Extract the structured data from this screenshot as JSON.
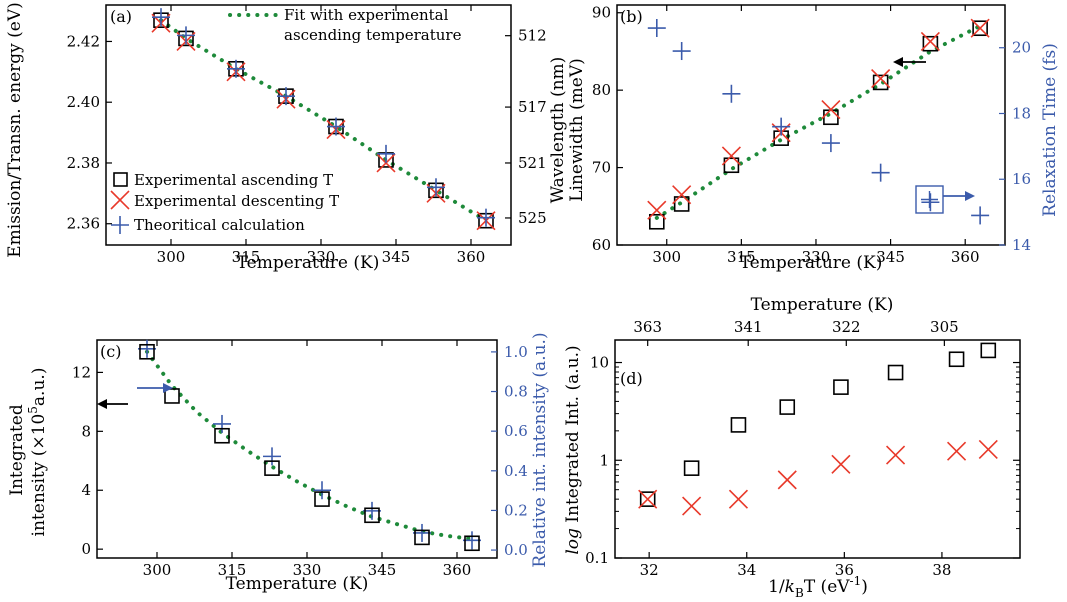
{
  "colors": {
    "black_marker": "#000000",
    "red_marker": "#e8392a",
    "blue_marker": "#3b5bab",
    "green_fit": "#1e8a3a"
  },
  "chart_data": [
    {
      "id": "a",
      "type": "scatter",
      "panel_label": "(a)",
      "xlabel": "Temperature (K)",
      "ylabel": "Emission/Transn. energy (eV)",
      "y2label": "Wavelength (nm)",
      "xlim": [
        287,
        368
      ],
      "ylim": [
        2.353,
        2.432
      ],
      "xticks": [
        300,
        315,
        330,
        345,
        360
      ],
      "yticks": [
        2.36,
        2.38,
        2.4,
        2.42
      ],
      "ytick_labels": [
        "2.36",
        "2.38",
        "2.40",
        "2.42"
      ],
      "y2ticks": [
        {
          "label": "512",
          "y": 2.4219
        },
        {
          "label": "517",
          "y": 2.3984
        },
        {
          "label": "521",
          "y": 2.38
        },
        {
          "label": "525",
          "y": 2.3619
        }
      ],
      "legend": {
        "ascending": "Experimental ascending T",
        "descending": "Experimental descenting T",
        "theory": "Theoritical calculation",
        "fit_line1": "Fit with experimental",
        "fit_line2": "ascending temperature"
      },
      "series": [
        {
          "name": "Experimental ascending T",
          "marker": "square",
          "color": "black_marker",
          "x": [
            298,
            303,
            313,
            323,
            333,
            343,
            353,
            363
          ],
          "y": [
            2.427,
            2.421,
            2.411,
            2.402,
            2.392,
            2.381,
            2.371,
            2.361
          ]
        },
        {
          "name": "Experimental descenting T",
          "marker": "x",
          "color": "red_marker",
          "x": [
            298,
            303,
            313,
            323,
            333,
            343,
            353,
            363
          ],
          "y": [
            2.426,
            2.42,
            2.41,
            2.401,
            2.391,
            2.38,
            2.37,
            2.361
          ]
        },
        {
          "name": "Theoritical calculation",
          "marker": "plus",
          "color": "blue_marker",
          "x": [
            298,
            303,
            313,
            323,
            333,
            343,
            353,
            363
          ],
          "y": [
            2.428,
            2.422,
            2.411,
            2.402,
            2.392,
            2.383,
            2.372,
            2.362
          ]
        },
        {
          "name": "Fit with experimental ascending temperature",
          "marker": "dotted",
          "color": "green_fit",
          "x": [
            298,
            303,
            313,
            323,
            333,
            343,
            353,
            363
          ],
          "y": [
            2.427,
            2.421,
            2.411,
            2.402,
            2.392,
            2.381,
            2.371,
            2.361
          ]
        }
      ]
    },
    {
      "id": "b",
      "type": "scatter",
      "panel_label": "(b)",
      "xlabel": "Temperature (K)",
      "ylabel": "Linewidth (meV)",
      "y2label": "Relaxation Time (fs)",
      "xlim": [
        290,
        368
      ],
      "ylim": [
        60,
        91
      ],
      "y2lim": [
        14,
        21.3
      ],
      "xticks": [
        300,
        315,
        330,
        345,
        360
      ],
      "yticks": [
        60,
        70,
        80,
        90
      ],
      "y2ticks": [
        14,
        16,
        18,
        20
      ],
      "series": [
        {
          "name": "Experimental ascending T",
          "marker": "square",
          "color": "black_marker",
          "x": [
            298,
            303,
            313,
            323,
            333,
            343,
            353,
            363
          ],
          "y": [
            63.0,
            65.3,
            70.3,
            73.8,
            76.5,
            81.0,
            86.0,
            88.0
          ]
        },
        {
          "name": "Experimental descenting T",
          "marker": "x",
          "color": "red_marker",
          "x": [
            298,
            303,
            313,
            323,
            333,
            343,
            353,
            363
          ],
          "y": [
            64.5,
            66.5,
            71.5,
            74.5,
            77.5,
            81.5,
            86.3,
            88.0
          ]
        },
        {
          "name": "Fit with experimental ascending temperature",
          "marker": "dotted",
          "color": "green_fit",
          "x": [
            298,
            303,
            313,
            323,
            333,
            343,
            353,
            363
          ],
          "y": [
            63.5,
            65.5,
            69.8,
            73.6,
            77.0,
            80.8,
            85.0,
            88.3
          ]
        },
        {
          "name": "Relaxation Time",
          "marker": "plus",
          "color": "blue_marker",
          "axis": "right",
          "x": [
            298,
            303,
            313,
            323,
            333,
            343,
            353,
            363
          ],
          "y": [
            20.6,
            19.9,
            18.6,
            17.6,
            17.1,
            16.2,
            15.3,
            14.9
          ]
        }
      ]
    },
    {
      "id": "c",
      "type": "scatter",
      "panel_label": "(c)",
      "xlabel": "Temperature (K)",
      "ylabel_line1": "Integrated",
      "ylabel_line2": "intensity (×10",
      "ylabel_exp": "5",
      "ylabel_line2_end": "a.u.)",
      "y2label": "Relative int. intensity (a.u.)",
      "xlim": [
        288,
        368
      ],
      "ylim": [
        -0.6,
        14.2
      ],
      "y2lim": [
        -0.04,
        1.06
      ],
      "xticks": [
        300,
        315,
        330,
        345,
        360
      ],
      "yticks": [
        0,
        4,
        8,
        12
      ],
      "y2ticks": [
        0.0,
        0.2,
        0.4,
        0.6,
        0.8,
        1.0
      ],
      "y2tick_labels": [
        "0.0",
        "0.2",
        "0.4",
        "0.6",
        "0.8",
        "1.0"
      ],
      "series": [
        {
          "name": "Experimental ascending T",
          "marker": "square",
          "color": "black_marker",
          "x": [
            298,
            303,
            313,
            323,
            333,
            343,
            353,
            363
          ],
          "y": [
            13.4,
            10.4,
            7.7,
            5.5,
            3.4,
            2.3,
            0.8,
            0.4
          ]
        },
        {
          "name": "Relative int. intensity",
          "marker": "plus",
          "color": "blue_marker",
          "x": [
            298,
            313,
            323,
            333,
            343,
            353,
            363
          ],
          "y": [
            13.6,
            8.5,
            6.3,
            4.0,
            2.6,
            1.1,
            0.6
          ]
        },
        {
          "name": "Fit with experimental ascending temperature",
          "marker": "dotted",
          "color": "green_fit",
          "x": [
            298,
            303,
            308,
            313,
            318,
            323,
            328,
            333,
            338,
            343,
            348,
            353,
            358,
            363
          ],
          "y": [
            13.4,
            11.1,
            9.3,
            7.9,
            6.7,
            5.6,
            4.6,
            3.7,
            2.9,
            2.2,
            1.7,
            1.2,
            0.9,
            0.7
          ]
        }
      ]
    },
    {
      "id": "d",
      "type": "scatter",
      "panel_label": "(d)",
      "xlabel_prefix": "1/",
      "xlabel_k": "k",
      "xlabel_sub": "B",
      "xlabel_mid": "T (eV",
      "xlabel_sup": "-1",
      "xlabel_end": ")",
      "ylabel_log": "log",
      "ylabel_rest": " Integrated Int. (a.u.)",
      "top_xlabel": "Temperature (K)",
      "xlim": [
        31.3,
        39.6
      ],
      "ylim": [
        0.1,
        17
      ],
      "yscale": "log",
      "xticks": [
        32,
        34,
        36,
        38
      ],
      "yticks": [
        0.1,
        1,
        10
      ],
      "ytick_labels": [
        "0.1",
        "1",
        "10"
      ],
      "top_xticks": [
        {
          "label": "363",
          "x": 31.97
        },
        {
          "label": "341",
          "x": 34.03
        },
        {
          "label": "322",
          "x": 36.04
        },
        {
          "label": "305",
          "x": 38.05
        }
      ],
      "series": [
        {
          "name": "black squares",
          "marker": "square",
          "color": "black_marker",
          "x": [
            31.97,
            32.87,
            33.83,
            34.83,
            35.93,
            37.05,
            38.3,
            38.95
          ],
          "y": [
            0.4,
            0.83,
            2.3,
            3.5,
            5.6,
            7.9,
            10.8,
            13.3
          ]
        },
        {
          "name": "red crosses",
          "marker": "x",
          "color": "red_marker",
          "x": [
            31.97,
            32.87,
            33.83,
            34.83,
            35.93,
            37.05,
            38.3,
            38.95
          ],
          "y": [
            0.4,
            0.34,
            0.4,
            0.63,
            0.91,
            1.13,
            1.24,
            1.29
          ]
        }
      ]
    }
  ]
}
